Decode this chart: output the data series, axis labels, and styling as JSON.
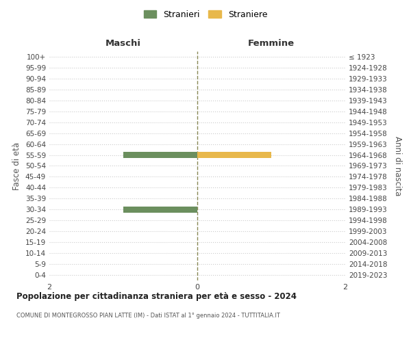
{
  "age_groups": [
    "100+",
    "95-99",
    "90-94",
    "85-89",
    "80-84",
    "75-79",
    "70-74",
    "65-69",
    "60-64",
    "55-59",
    "50-54",
    "45-49",
    "40-44",
    "35-39",
    "30-34",
    "25-29",
    "20-24",
    "15-19",
    "10-14",
    "5-9",
    "0-4"
  ],
  "birth_years": [
    "≤ 1923",
    "1924-1928",
    "1929-1933",
    "1934-1938",
    "1939-1943",
    "1944-1948",
    "1949-1953",
    "1954-1958",
    "1959-1963",
    "1964-1968",
    "1969-1973",
    "1974-1978",
    "1979-1983",
    "1984-1988",
    "1989-1993",
    "1994-1998",
    "1999-2003",
    "2004-2008",
    "2009-2013",
    "2014-2018",
    "2019-2023"
  ],
  "males": [
    0,
    0,
    0,
    0,
    0,
    0,
    0,
    0,
    0,
    1,
    0,
    0,
    0,
    0,
    1,
    0,
    0,
    0,
    0,
    0,
    0
  ],
  "females": [
    0,
    0,
    0,
    0,
    0,
    0,
    0,
    0,
    0,
    1,
    0,
    0,
    0,
    0,
    0,
    0,
    0,
    0,
    0,
    0,
    0
  ],
  "male_color": "#6b8f5e",
  "female_color": "#e8b84b",
  "title": "Popolazione per cittadinanza straniera per età e sesso - 2024",
  "subtitle": "COMUNE DI MONTEGROSSO PIAN LATTE (IM) - Dati ISTAT al 1° gennaio 2024 - TUTTITALIA.IT",
  "xlabel_left": "Maschi",
  "xlabel_right": "Femmine",
  "ylabel_left": "Fasce di età",
  "ylabel_right": "Anni di nascita",
  "legend_male": "Stranieri",
  "legend_female": "Straniere",
  "xlim": 2,
  "background_color": "#ffffff",
  "grid_color": "#cccccc",
  "bar_height": 0.6
}
